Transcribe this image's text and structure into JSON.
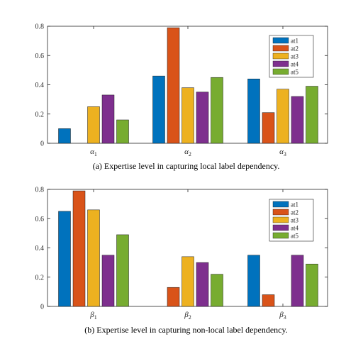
{
  "chart_data": [
    {
      "type": "bar",
      "caption": "(a) Expertise level in capturing local label dependency.",
      "categories": [
        {
          "symbol": "α",
          "sub": "1"
        },
        {
          "symbol": "α",
          "sub": "2"
        },
        {
          "symbol": "α",
          "sub": "3"
        }
      ],
      "series": [
        {
          "name": "at1",
          "color": "#0072BD",
          "values": [
            0.1,
            0.46,
            0.44
          ]
        },
        {
          "name": "at2",
          "color": "#D95319",
          "values": [
            0.0,
            0.79,
            0.21
          ]
        },
        {
          "name": "at3",
          "color": "#EDB120",
          "values": [
            0.25,
            0.38,
            0.37
          ]
        },
        {
          "name": "at4",
          "color": "#7E2F8E",
          "values": [
            0.33,
            0.35,
            0.32
          ]
        },
        {
          "name": "at5",
          "color": "#77AC30",
          "values": [
            0.16,
            0.45,
            0.39
          ]
        }
      ],
      "ylim": [
        0,
        0.8
      ],
      "yticks": [
        "0",
        "0.2",
        "0.4",
        "0.6",
        "0.8"
      ],
      "legend_position": "top-right"
    },
    {
      "type": "bar",
      "caption": "(b) Expertise level in capturing non-local label dependency.",
      "categories": [
        {
          "symbol": "β",
          "sub": "1"
        },
        {
          "symbol": "β",
          "sub": "2"
        },
        {
          "symbol": "β",
          "sub": "3"
        }
      ],
      "series": [
        {
          "name": "at1",
          "color": "#0072BD",
          "values": [
            0.65,
            0.0,
            0.35
          ]
        },
        {
          "name": "at2",
          "color": "#D95319",
          "values": [
            0.79,
            0.13,
            0.08
          ]
        },
        {
          "name": "at3",
          "color": "#EDB120",
          "values": [
            0.66,
            0.34,
            0.0
          ]
        },
        {
          "name": "at4",
          "color": "#7E2F8E",
          "values": [
            0.35,
            0.3,
            0.35
          ]
        },
        {
          "name": "at5",
          "color": "#77AC30",
          "values": [
            0.49,
            0.22,
            0.29
          ]
        }
      ],
      "ylim": [
        0,
        0.8
      ],
      "yticks": [
        "0",
        "0.2",
        "0.4",
        "0.6",
        "0.8"
      ],
      "legend_position": "top-right"
    }
  ]
}
